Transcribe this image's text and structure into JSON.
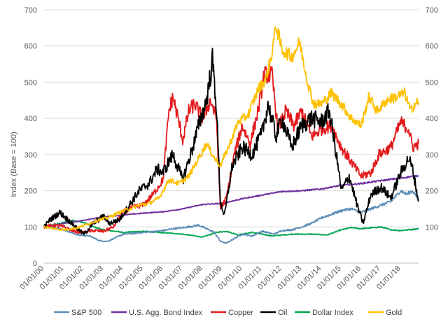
{
  "chart_data": {
    "type": "line",
    "title": "",
    "ylabel": "Index (Base = 100)",
    "ylim": [
      0,
      700
    ],
    "yticks": [
      0,
      100,
      200,
      300,
      400,
      500,
      600,
      700
    ],
    "secondary_yticks": [
      100,
      200,
      300,
      400,
      500,
      600,
      700
    ],
    "xlim": [
      2000.0,
      2018.9
    ],
    "xtick_labels": [
      "01/01/00",
      "01/01/01",
      "01/01/02",
      "01/01/03",
      "01/01/04",
      "01/01/05",
      "01/01/06",
      "01/01/07",
      "01/01/08",
      "01/01/09",
      "01/01/10",
      "01/01/11",
      "01/01/12",
      "01/01/13",
      "01/01/14",
      "01/01/15",
      "01/01/16",
      "01/01/17",
      "01/01/18"
    ],
    "grid": true,
    "legend_position": "bottom",
    "series": [
      {
        "name": "S&P 500",
        "color": "#5b8db8",
        "points": [
          [
            2000.0,
            100
          ],
          [
            2000.7,
            98
          ],
          [
            2001.2,
            88
          ],
          [
            2001.7,
            78
          ],
          [
            2002.3,
            75
          ],
          [
            2002.8,
            62
          ],
          [
            2003.2,
            60
          ],
          [
            2003.6,
            70
          ],
          [
            2004.0,
            80
          ],
          [
            2004.5,
            82
          ],
          [
            2005.0,
            85
          ],
          [
            2005.5,
            87
          ],
          [
            2006.0,
            90
          ],
          [
            2006.5,
            95
          ],
          [
            2007.0,
            98
          ],
          [
            2007.5,
            102
          ],
          [
            2007.8,
            105
          ],
          [
            2008.2,
            95
          ],
          [
            2008.6,
            85
          ],
          [
            2008.9,
            60
          ],
          [
            2009.2,
            55
          ],
          [
            2009.5,
            65
          ],
          [
            2010.0,
            80
          ],
          [
            2010.5,
            75
          ],
          [
            2011.0,
            88
          ],
          [
            2011.6,
            80
          ],
          [
            2012.0,
            90
          ],
          [
            2012.5,
            92
          ],
          [
            2013.0,
            100
          ],
          [
            2013.5,
            110
          ],
          [
            2014.0,
            125
          ],
          [
            2014.5,
            135
          ],
          [
            2015.0,
            145
          ],
          [
            2015.5,
            150
          ],
          [
            2016.0,
            140
          ],
          [
            2016.5,
            150
          ],
          [
            2017.0,
            160
          ],
          [
            2017.5,
            170
          ],
          [
            2018.0,
            200
          ],
          [
            2018.3,
            190
          ],
          [
            2018.6,
            200
          ],
          [
            2018.9,
            175
          ]
        ]
      },
      {
        "name": "U.S. Agg. Bond Index",
        "color": "#7030a0",
        "points": [
          [
            2000.0,
            100
          ],
          [
            2001.0,
            110
          ],
          [
            2002.0,
            118
          ],
          [
            2003.0,
            128
          ],
          [
            2004.0,
            133
          ],
          [
            2005.0,
            138
          ],
          [
            2006.0,
            142
          ],
          [
            2007.0,
            150
          ],
          [
            2008.0,
            162
          ],
          [
            2009.0,
            165
          ],
          [
            2010.0,
            178
          ],
          [
            2011.0,
            188
          ],
          [
            2012.0,
            198
          ],
          [
            2013.0,
            200
          ],
          [
            2014.0,
            205
          ],
          [
            2015.0,
            215
          ],
          [
            2016.0,
            220
          ],
          [
            2017.0,
            228
          ],
          [
            2018.0,
            235
          ],
          [
            2018.9,
            242
          ]
        ]
      },
      {
        "name": "Copper",
        "color": "#e31a1c",
        "points": [
          [
            2000.0,
            100
          ],
          [
            2000.5,
            105
          ],
          [
            2001.0,
            100
          ],
          [
            2001.5,
            88
          ],
          [
            2002.0,
            85
          ],
          [
            2002.5,
            90
          ],
          [
            2003.0,
            88
          ],
          [
            2003.5,
            100
          ],
          [
            2004.0,
            140
          ],
          [
            2004.5,
            155
          ],
          [
            2005.0,
            160
          ],
          [
            2005.5,
            190
          ],
          [
            2006.0,
            230
          ],
          [
            2006.3,
            420
          ],
          [
            2006.5,
            460
          ],
          [
            2006.8,
            390
          ],
          [
            2007.0,
            340
          ],
          [
            2007.3,
            420
          ],
          [
            2007.6,
            440
          ],
          [
            2008.0,
            400
          ],
          [
            2008.4,
            450
          ],
          [
            2008.7,
            400
          ],
          [
            2008.9,
            150
          ],
          [
            2009.2,
            180
          ],
          [
            2009.6,
            300
          ],
          [
            2010.0,
            380
          ],
          [
            2010.4,
            330
          ],
          [
            2010.8,
            420
          ],
          [
            2011.1,
            520
          ],
          [
            2011.5,
            520
          ],
          [
            2011.8,
            370
          ],
          [
            2012.2,
            420
          ],
          [
            2012.6,
            380
          ],
          [
            2013.0,
            420
          ],
          [
            2013.5,
            350
          ],
          [
            2014.0,
            370
          ],
          [
            2014.5,
            380
          ],
          [
            2015.0,
            320
          ],
          [
            2015.5,
            280
          ],
          [
            2016.0,
            240
          ],
          [
            2016.5,
            250
          ],
          [
            2016.9,
            300
          ],
          [
            2017.5,
            320
          ],
          [
            2018.0,
            390
          ],
          [
            2018.4,
            370
          ],
          [
            2018.6,
            320
          ],
          [
            2018.9,
            330
          ]
        ]
      },
      {
        "name": "Oil",
        "color": "#000000",
        "points": [
          [
            2000.0,
            100
          ],
          [
            2000.3,
            120
          ],
          [
            2000.8,
            140
          ],
          [
            2001.2,
            120
          ],
          [
            2001.8,
            90
          ],
          [
            2002.0,
            80
          ],
          [
            2002.5,
            110
          ],
          [
            2003.0,
            130
          ],
          [
            2003.3,
            110
          ],
          [
            2003.8,
            120
          ],
          [
            2004.3,
            160
          ],
          [
            2004.8,
            200
          ],
          [
            2005.3,
            220
          ],
          [
            2005.7,
            260
          ],
          [
            2006.0,
            250
          ],
          [
            2006.5,
            300
          ],
          [
            2007.0,
            230
          ],
          [
            2007.5,
            320
          ],
          [
            2007.8,
            380
          ],
          [
            2008.2,
            450
          ],
          [
            2008.5,
            560
          ],
          [
            2008.7,
            430
          ],
          [
            2008.9,
            170
          ],
          [
            2009.1,
            130
          ],
          [
            2009.5,
            270
          ],
          [
            2010.0,
            320
          ],
          [
            2010.5,
            300
          ],
          [
            2011.0,
            360
          ],
          [
            2011.3,
            440
          ],
          [
            2011.7,
            350
          ],
          [
            2012.0,
            400
          ],
          [
            2012.5,
            320
          ],
          [
            2013.0,
            380
          ],
          [
            2013.5,
            400
          ],
          [
            2014.0,
            390
          ],
          [
            2014.4,
            420
          ],
          [
            2014.8,
            280
          ],
          [
            2015.0,
            200
          ],
          [
            2015.4,
            240
          ],
          [
            2015.8,
            160
          ],
          [
            2016.1,
            110
          ],
          [
            2016.5,
            190
          ],
          [
            2017.0,
            210
          ],
          [
            2017.5,
            180
          ],
          [
            2018.0,
            250
          ],
          [
            2018.4,
            290
          ],
          [
            2018.6,
            260
          ],
          [
            2018.9,
            170
          ]
        ]
      },
      {
        "name": "Dollar Index",
        "color": "#00a650",
        "points": [
          [
            2000.0,
            100
          ],
          [
            2000.8,
            110
          ],
          [
            2001.5,
            118
          ],
          [
            2002.0,
            112
          ],
          [
            2002.5,
            100
          ],
          [
            2003.0,
            92
          ],
          [
            2004.0,
            85
          ],
          [
            2005.0,
            88
          ],
          [
            2006.0,
            84
          ],
          [
            2007.0,
            80
          ],
          [
            2008.0,
            72
          ],
          [
            2008.7,
            85
          ],
          [
            2009.2,
            88
          ],
          [
            2009.8,
            78
          ],
          [
            2010.5,
            85
          ],
          [
            2011.5,
            75
          ],
          [
            2012.5,
            80
          ],
          [
            2013.5,
            80
          ],
          [
            2014.3,
            78
          ],
          [
            2015.0,
            92
          ],
          [
            2015.5,
            98
          ],
          [
            2016.0,
            95
          ],
          [
            2017.0,
            100
          ],
          [
            2017.5,
            92
          ],
          [
            2018.0,
            90
          ],
          [
            2018.9,
            95
          ]
        ]
      },
      {
        "name": "Gold",
        "color": "#ffc000",
        "points": [
          [
            2000.0,
            100
          ],
          [
            2000.5,
            95
          ],
          [
            2001.0,
            92
          ],
          [
            2001.7,
            98
          ],
          [
            2002.3,
            110
          ],
          [
            2002.8,
            120
          ],
          [
            2003.2,
            125
          ],
          [
            2003.8,
            140
          ],
          [
            2004.3,
            150
          ],
          [
            2004.8,
            160
          ],
          [
            2005.3,
            165
          ],
          [
            2005.8,
            180
          ],
          [
            2006.3,
            230
          ],
          [
            2006.8,
            220
          ],
          [
            2007.3,
            240
          ],
          [
            2007.8,
            290
          ],
          [
            2008.2,
            330
          ],
          [
            2008.6,
            290
          ],
          [
            2008.9,
            270
          ],
          [
            2009.3,
            320
          ],
          [
            2009.8,
            390
          ],
          [
            2010.3,
            410
          ],
          [
            2010.8,
            480
          ],
          [
            2011.2,
            510
          ],
          [
            2011.5,
            580
          ],
          [
            2011.7,
            660
          ],
          [
            2012.0,
            590
          ],
          [
            2012.5,
            570
          ],
          [
            2012.9,
            610
          ],
          [
            2013.3,
            500
          ],
          [
            2013.6,
            440
          ],
          [
            2014.0,
            440
          ],
          [
            2014.5,
            470
          ],
          [
            2015.0,
            440
          ],
          [
            2015.5,
            400
          ],
          [
            2016.0,
            380
          ],
          [
            2016.4,
            460
          ],
          [
            2016.8,
            420
          ],
          [
            2017.3,
            450
          ],
          [
            2017.8,
            460
          ],
          [
            2018.2,
            470
          ],
          [
            2018.5,
            420
          ],
          [
            2018.7,
            440
          ],
          [
            2018.9,
            445
          ]
        ]
      }
    ]
  }
}
